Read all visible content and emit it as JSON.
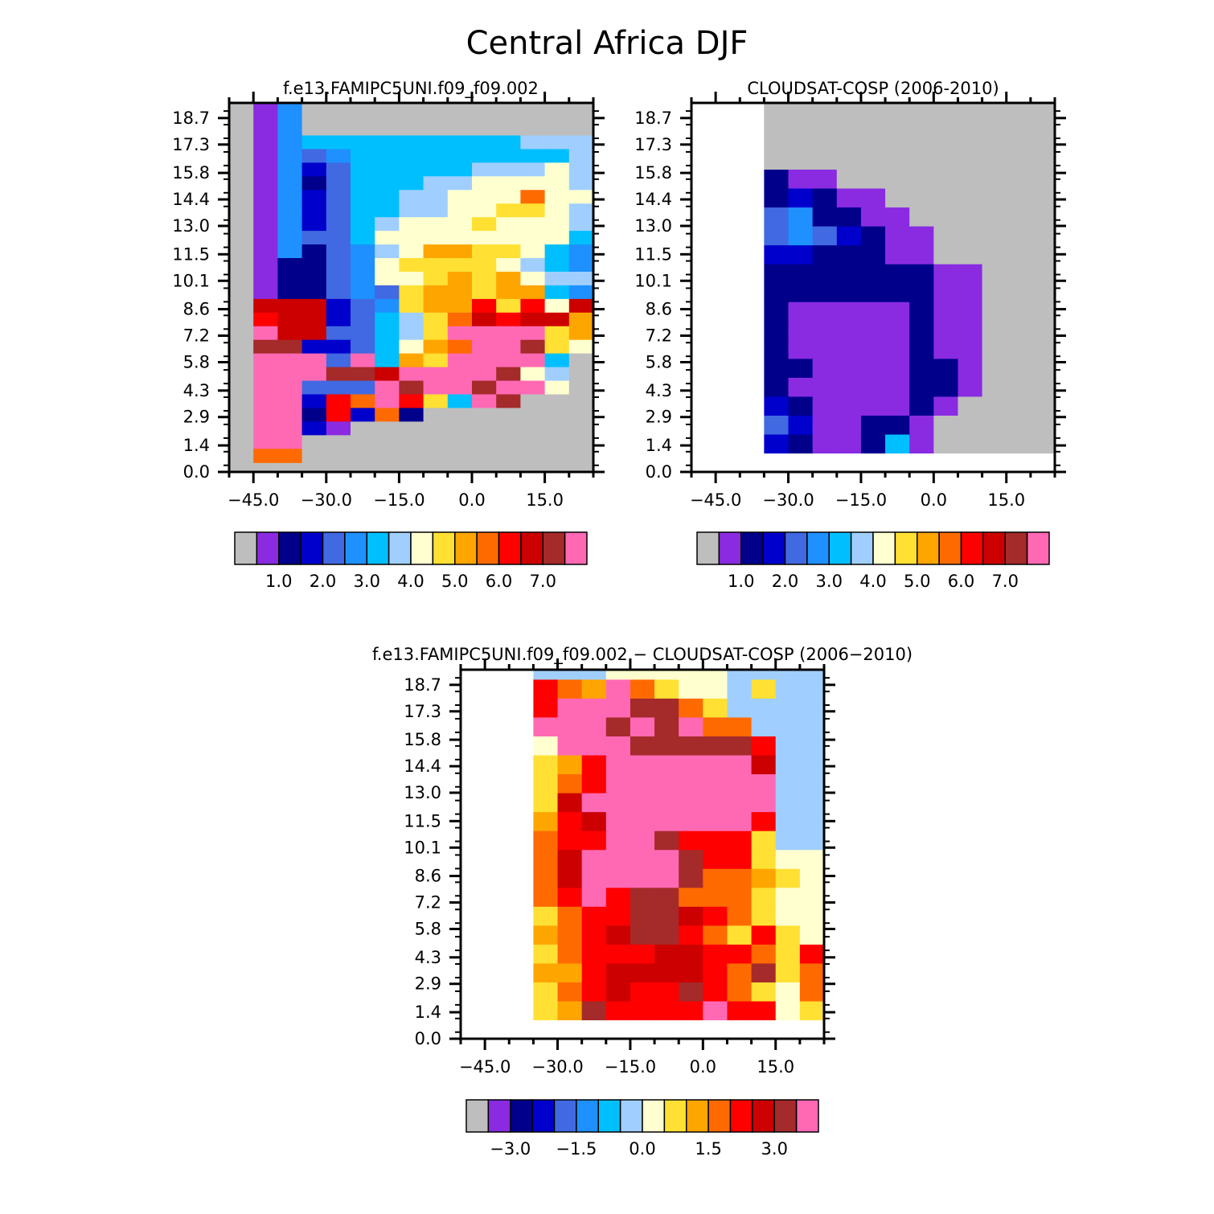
{
  "title": "Central Africa DJF",
  "colors": {
    "missing": "#bebebe",
    "palette": [
      "#bebebe",
      "#8a2be2",
      "#00008b",
      "#0000cd",
      "#4169e1",
      "#1e90ff",
      "#00bfff",
      "#a0cfff",
      "#ffffd0",
      "#ffe033",
      "#ffa500",
      "#ff6a00",
      "#ff0000",
      "#cd0000",
      "#a52a2a",
      "#ff69b4"
    ]
  },
  "chart_data": [
    {
      "type": "heatmap",
      "title": "f.e13.FAMIPC5UNI.f09_f09.002",
      "xticks": [
        "−45.0",
        "−30.0",
        "−15.0",
        "0.0",
        "15.0"
      ],
      "yticks": [
        "0.0",
        "1.4",
        "2.9",
        "4.3",
        "5.8",
        "7.2",
        "8.6",
        "10.1",
        "11.5",
        "13.0",
        "14.4",
        "15.8",
        "17.3",
        "18.7"
      ],
      "xlim": [
        -50,
        25
      ],
      "ylim": [
        0,
        19.5
      ],
      "colorbar_labels": [
        "1.0",
        "2.0",
        "3.0",
        "4.0",
        "5.0",
        "6.0",
        "7.0"
      ],
      "grid_x_start": -45,
      "grid_y_start": 0.5,
      "cell_w": 5,
      "cell_h": 0.72,
      "cells": [
        "15.......................",
        "15.......................",
        "15.......................",
        "1566666666677777.........",
        "15456666666667777........",
        "1534666667778776.........",
        "1524666778888787.........",
        "15346677888b8875.........",
        "1534667788998776.........",
        "153467888988876..........",
        "15446888888886...........",
        "1524578aa99865...........",
        "12245899998765...........",
        "12245889a9a8773..........",
        "1224549aa9aa653..........",
        "ddd3459aac9c8d3..........",
        "cdd34679bdcdda...........",
        "fdd44679ffff9a...........",
        "ee33468abffe98...........",
        "fff4f6a9ffff6............",
        "fffeedffffe87............",
        "ff444feffeff8............",
        "ff3cbfc96fe..............",
        "ff2c3b2..................",
        "ff31.....................",
        "ff.......................",
        "bb......................."
      ]
    },
    {
      "type": "heatmap",
      "title": "CLOUDSAT-COSP (2006-2010)",
      "xticks": [
        "−45.0",
        "−30.0",
        "−15.0",
        "0.0",
        "15.0"
      ],
      "yticks": [
        "0.0",
        "1.4",
        "2.9",
        "4.3",
        "5.8",
        "7.2",
        "8.6",
        "10.1",
        "11.5",
        "13.0",
        "14.4",
        "15.8",
        "17.3",
        "18.7"
      ],
      "xlim": [
        -50,
        25
      ],
      "ylim": [
        0,
        19.5
      ],
      "colorbar_labels": [
        "1.0",
        "2.0",
        "3.0",
        "4.0",
        "5.0",
        "6.0",
        "7.0"
      ],
      "grid_x_start": -35,
      "grid_y_start": 1.0,
      "cell_w": 5,
      "cell_h": 1.0
    },
    {
      "type": "heatmap",
      "title": "f.e13.FAMIPC5UNI.f09_f09.002 − CLOUDSAT-COSP (2006−2010)",
      "xticks": [
        "−45.0",
        "−30.0",
        "−15.0",
        "0.0",
        "15.0"
      ],
      "yticks": [
        "0.0",
        "1.4",
        "2.9",
        "4.3",
        "5.8",
        "7.2",
        "8.6",
        "10.1",
        "11.5",
        "13.0",
        "14.4",
        "15.8",
        "17.3",
        "18.7"
      ],
      "xlim": [
        -50,
        25
      ],
      "ylim": [
        0,
        19.5
      ],
      "colorbar_labels": [
        "−3.0",
        "−1.5",
        "0.0",
        "1.5",
        "3.0"
      ],
      "grid_x_start": -35,
      "grid_y_start": 1.0,
      "cell_w": 5,
      "cell_h": 1.0
    }
  ]
}
